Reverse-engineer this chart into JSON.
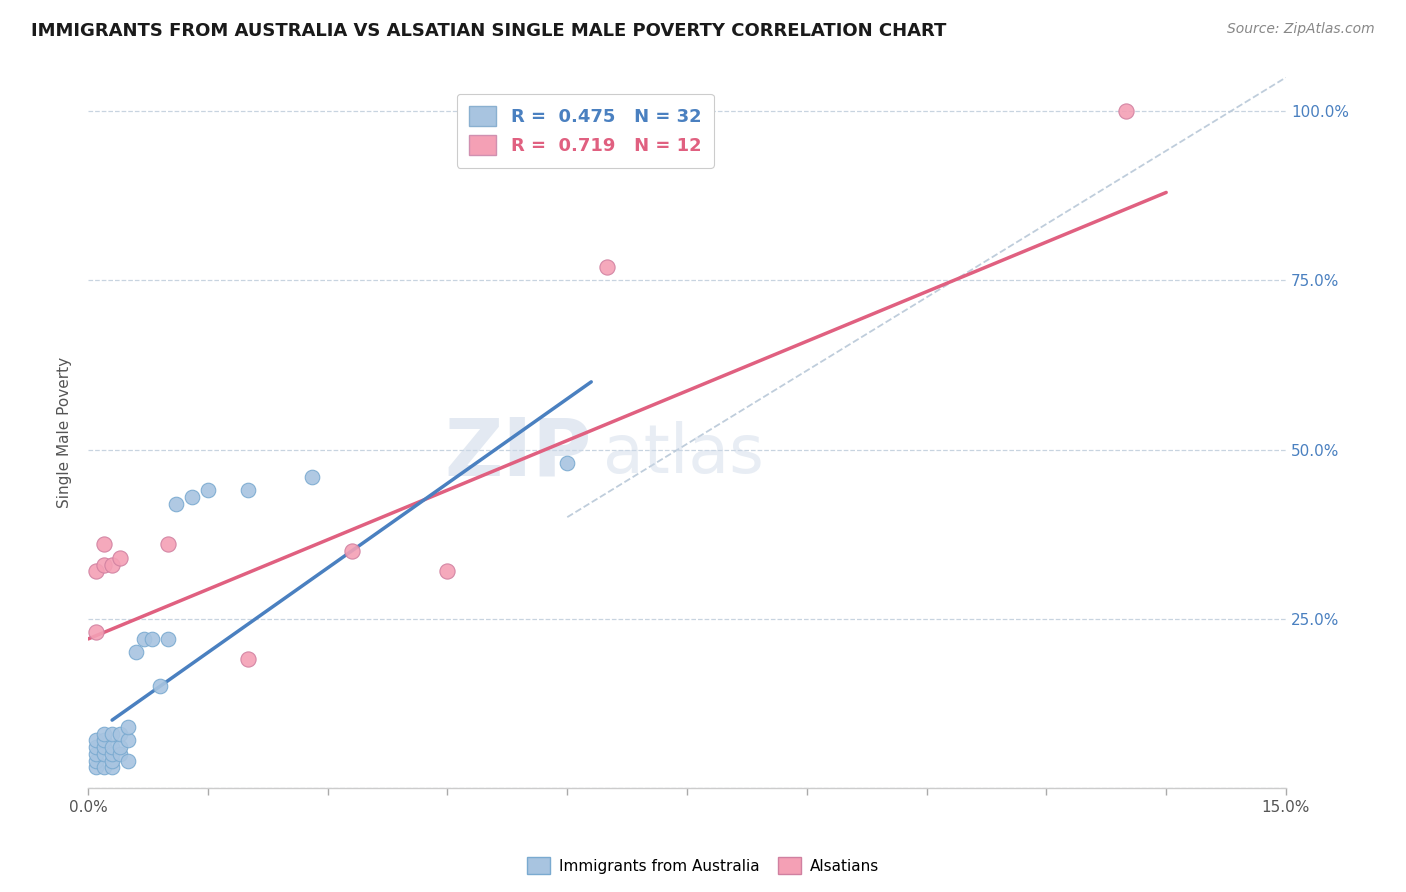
{
  "title": "IMMIGRANTS FROM AUSTRALIA VS ALSATIAN SINGLE MALE POVERTY CORRELATION CHART",
  "source": "Source: ZipAtlas.com",
  "ylabel": "Single Male Poverty",
  "xlim": [
    0.0,
    0.15
  ],
  "ylim": [
    0.0,
    1.05
  ],
  "xticks": [
    0.0,
    0.015,
    0.03,
    0.045,
    0.06,
    0.075,
    0.09,
    0.105,
    0.12,
    0.135,
    0.15
  ],
  "xticklabels": [
    "0.0%",
    "",
    "",
    "",
    "",
    "",
    "",
    "",
    "",
    "",
    "15.0%"
  ],
  "ytick_positions": [
    0.0,
    0.25,
    0.5,
    0.75,
    1.0
  ],
  "yticklabels_right": [
    "",
    "25.0%",
    "50.0%",
    "75.0%",
    "100.0%"
  ],
  "blue_R": "0.475",
  "blue_N": "32",
  "pink_R": "0.719",
  "pink_N": "12",
  "blue_color": "#a8c4e0",
  "pink_color": "#f4a0b5",
  "blue_line_color": "#4a80c0",
  "pink_line_color": "#e06080",
  "watermark_zip": "ZIP",
  "watermark_atlas": "atlas",
  "grid_color": "#c8d4e0",
  "background_color": "#ffffff",
  "blue_scatter_x": [
    0.001,
    0.001,
    0.001,
    0.001,
    0.001,
    0.002,
    0.002,
    0.002,
    0.002,
    0.002,
    0.003,
    0.003,
    0.003,
    0.003,
    0.003,
    0.004,
    0.004,
    0.004,
    0.005,
    0.005,
    0.005,
    0.006,
    0.007,
    0.008,
    0.009,
    0.01,
    0.011,
    0.013,
    0.015,
    0.02,
    0.028,
    0.06
  ],
  "blue_scatter_y": [
    0.03,
    0.04,
    0.05,
    0.06,
    0.07,
    0.03,
    0.05,
    0.06,
    0.07,
    0.08,
    0.03,
    0.04,
    0.05,
    0.06,
    0.08,
    0.05,
    0.06,
    0.08,
    0.04,
    0.07,
    0.09,
    0.2,
    0.22,
    0.22,
    0.15,
    0.22,
    0.42,
    0.43,
    0.44,
    0.44,
    0.46,
    0.48
  ],
  "pink_scatter_x": [
    0.001,
    0.001,
    0.002,
    0.002,
    0.003,
    0.004,
    0.01,
    0.02,
    0.033,
    0.045,
    0.065,
    0.13
  ],
  "pink_scatter_y": [
    0.23,
    0.32,
    0.33,
    0.36,
    0.33,
    0.34,
    0.36,
    0.19,
    0.35,
    0.32,
    0.77,
    1.0
  ],
  "blue_trendline_x": [
    0.003,
    0.063
  ],
  "blue_trendline_y": [
    0.1,
    0.6
  ],
  "pink_trendline_x": [
    0.0,
    0.135
  ],
  "pink_trendline_y": [
    0.22,
    0.88
  ],
  "diag_line_x": [
    0.06,
    0.15
  ],
  "diag_line_y": [
    0.4,
    1.05
  ]
}
